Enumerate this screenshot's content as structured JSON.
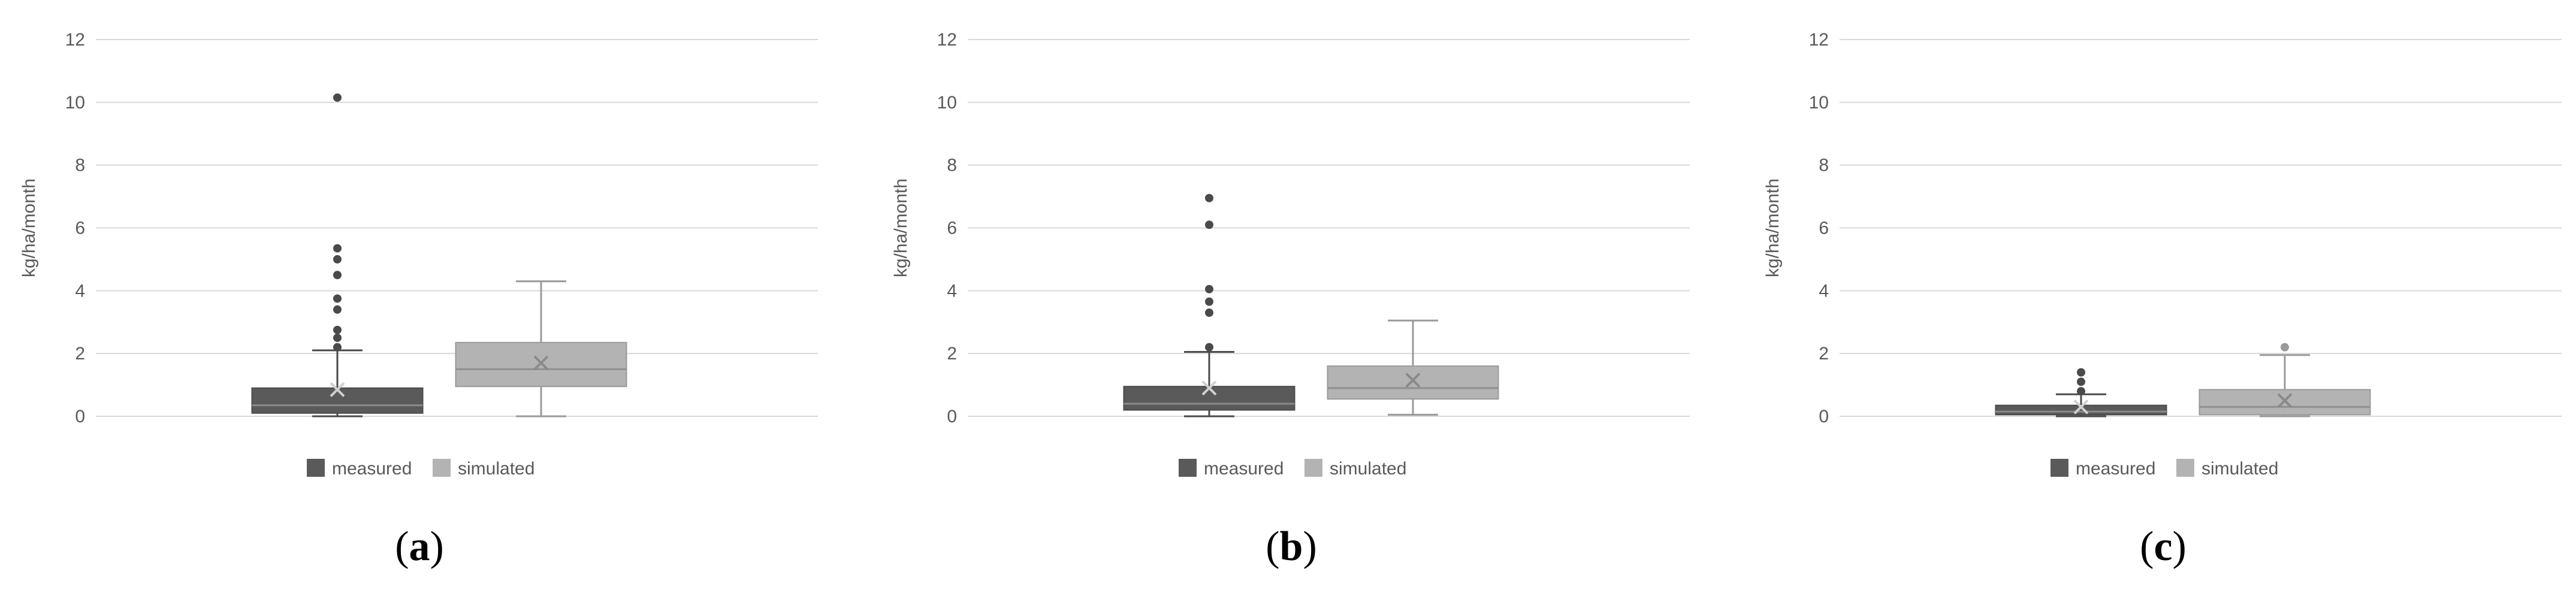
{
  "colors": {
    "measured_fill": "#5a5a5a",
    "measured_edge": "#4a4a4a",
    "simulated_fill": "#b3b3b3",
    "simulated_edge": "#9a9a9a",
    "grid": "#d9d9d9"
  },
  "chart_data": [
    {
      "type": "box",
      "panel_label": "a",
      "ylabel": "kg/ha/month",
      "ylim": [
        0,
        12
      ],
      "yticks": [
        0,
        2,
        4,
        6,
        8,
        10,
        12
      ],
      "grid": "horizontal",
      "legend_position": "bottom",
      "series": [
        {
          "name": "measured",
          "min": 0.0,
          "q1": 0.1,
          "median": 0.35,
          "q3": 0.9,
          "max": 2.1,
          "mean": 0.85,
          "outliers": [
            2.2,
            2.5,
            2.75,
            3.4,
            3.75,
            4.5,
            5.0,
            5.35,
            10.15
          ]
        },
        {
          "name": "simulated",
          "min": 0.0,
          "q1": 0.95,
          "median": 1.5,
          "q3": 2.35,
          "max": 4.3,
          "mean": 1.7,
          "outliers": []
        }
      ]
    },
    {
      "type": "box",
      "panel_label": "b",
      "ylabel": "kg/ha/month",
      "ylim": [
        0,
        12
      ],
      "yticks": [
        0,
        2,
        4,
        6,
        8,
        10,
        12
      ],
      "grid": "horizontal",
      "legend_position": "bottom",
      "series": [
        {
          "name": "measured",
          "min": 0.0,
          "q1": 0.2,
          "median": 0.4,
          "q3": 0.95,
          "max": 2.05,
          "mean": 0.9,
          "outliers": [
            2.2,
            3.3,
            3.65,
            4.05,
            6.1,
            6.95
          ]
        },
        {
          "name": "simulated",
          "min": 0.05,
          "q1": 0.55,
          "median": 0.9,
          "q3": 1.6,
          "max": 3.05,
          "mean": 1.15,
          "outliers": []
        }
      ]
    },
    {
      "type": "box",
      "panel_label": "c",
      "ylabel": "kg/ha/month",
      "ylim": [
        0,
        12
      ],
      "yticks": [
        0,
        2,
        4,
        6,
        8,
        10,
        12
      ],
      "grid": "horizontal",
      "legend_position": "bottom",
      "series": [
        {
          "name": "measured",
          "min": 0.0,
          "q1": 0.05,
          "median": 0.15,
          "q3": 0.35,
          "max": 0.7,
          "mean": 0.3,
          "outliers": [
            0.8,
            1.1,
            1.4
          ]
        },
        {
          "name": "simulated",
          "min": 0.0,
          "q1": 0.05,
          "median": 0.3,
          "q3": 0.85,
          "max": 1.95,
          "mean": 0.5,
          "outliers": [
            2.2
          ]
        }
      ]
    }
  ]
}
